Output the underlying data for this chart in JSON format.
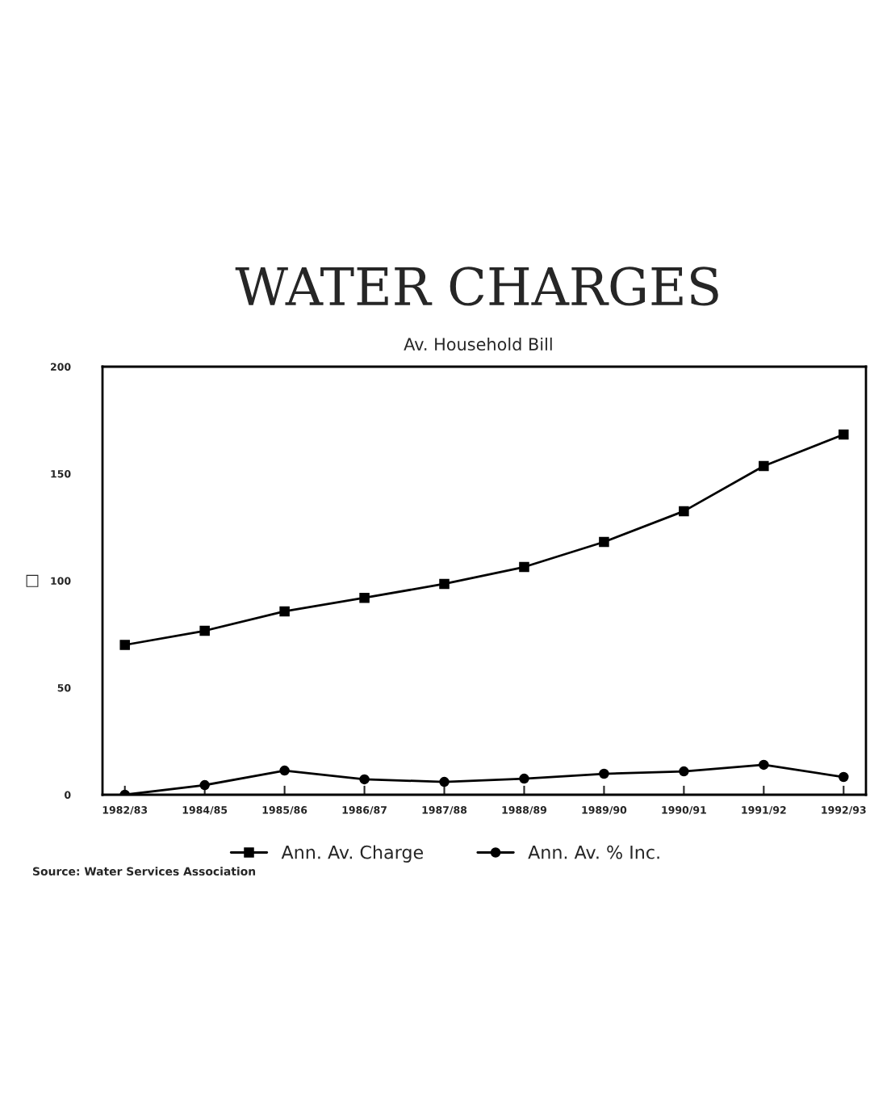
{
  "chart_data": {
    "type": "line",
    "title": "WATER CHARGES",
    "subtitle": "Av. Household Bill",
    "ylabel": "□",
    "categories": [
      "1982/83",
      "1984/85",
      "1985/86",
      "1986/87",
      "1987/88",
      "1988/89",
      "1989/90",
      "1990/91",
      "1991/92",
      "1992/93"
    ],
    "series": [
      {
        "name": "Ann. Av. Charge",
        "color": "#000000",
        "marker": "square",
        "values": [
          70,
          76.6,
          85.7,
          92,
          98.5,
          106.4,
          118.1,
          132.5,
          153.6,
          168.3
        ]
      },
      {
        "name": "Ann. Av. % Inc.",
        "color": "#000000",
        "marker": "circle",
        "values": [
          0,
          4.5,
          11.3,
          7.2,
          6.0,
          7.5,
          9.8,
          10.9,
          14,
          8.3
        ]
      }
    ],
    "ylim": [
      0,
      200
    ],
    "yticks": [
      0,
      50,
      100,
      150,
      200
    ],
    "grid": false,
    "legend": "bottom",
    "line_style": "solid",
    "annotations": [
      "Source: Water Services Association"
    ]
  }
}
